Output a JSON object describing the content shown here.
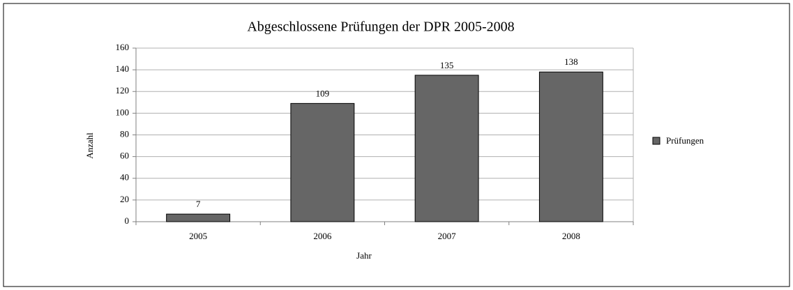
{
  "chart_data": {
    "type": "bar",
    "title": "Abgeschlossene Prüfungen der DPR 2005-2008",
    "categories": [
      "2005",
      "2006",
      "2007",
      "2008"
    ],
    "series": [
      {
        "name": "Prüfungen",
        "color": "#666666",
        "values": [
          7,
          109,
          135,
          138
        ]
      }
    ],
    "xlabel": "Jahr",
    "ylabel": "Anzahl",
    "ylim": [
      0,
      160
    ],
    "yticks": [
      0,
      20,
      40,
      60,
      80,
      100,
      120,
      140,
      160
    ],
    "grid": true,
    "legend": "right"
  }
}
